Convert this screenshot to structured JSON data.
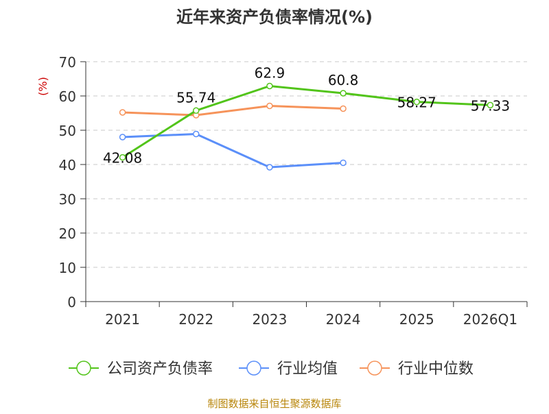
{
  "chart_data": {
    "type": "line",
    "title": "近年来资产负债率情况(%)",
    "ylabel": "(%)",
    "categories": [
      "2021",
      "2022",
      "2023",
      "2024",
      "2025",
      "2026Q1"
    ],
    "ylim": [
      0,
      70
    ],
    "yticks": [
      "0",
      "10",
      "20",
      "30",
      "40",
      "50",
      "60",
      "70"
    ],
    "grid": true,
    "legend_position": "bottom",
    "series": [
      {
        "name": "公司资产负债率",
        "color": "#52c41a",
        "values": [
          42.08,
          55.74,
          62.9,
          60.8,
          58.27,
          57.33
        ],
        "labels": [
          "42.08",
          "55.74",
          "62.9",
          "60.8",
          "58.27",
          "57.33"
        ]
      },
      {
        "name": "行业均值",
        "color": "#5b8ff9",
        "values": [
          48.0,
          48.9,
          39.2,
          40.5,
          null,
          null
        ],
        "labels": null
      },
      {
        "name": "行业中位数",
        "color": "#f6935a",
        "values": [
          55.2,
          54.4,
          57.1,
          56.3,
          null,
          null
        ],
        "labels": null
      }
    ],
    "source": "制图数据来自恒生聚源数据库",
    "title_color": "#333333",
    "ylabel_color": "#cc0000",
    "source_color": "#b8860b"
  }
}
